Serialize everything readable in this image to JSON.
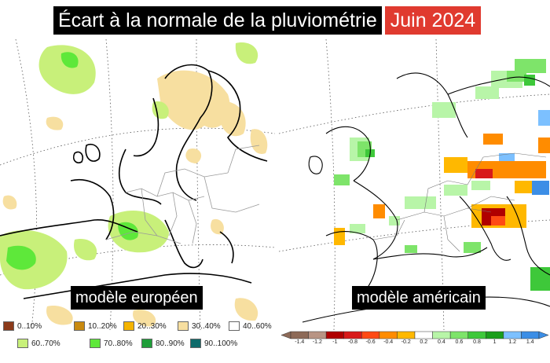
{
  "title": {
    "main": "Écart à la normale de la pluviométrie",
    "date": "Juin 2024"
  },
  "maps": {
    "left": {
      "label": "modèle européen"
    },
    "right": {
      "label": "modèle américain"
    }
  },
  "legend_left": {
    "items": [
      {
        "label": "0..10%",
        "color": "#8b3a1a"
      },
      {
        "label": "10..20%",
        "color": "#c98a10"
      },
      {
        "label": "20..30%",
        "color": "#f4b400"
      },
      {
        "label": "30..40%",
        "color": "#f7dfa0"
      },
      {
        "label": "40..60%",
        "color": "#ffffff"
      },
      {
        "label": "60..70%",
        "color": "#c8f07a"
      },
      {
        "label": "70..80%",
        "color": "#5ee83a"
      },
      {
        "label": "80..90%",
        "color": "#1f9e3a"
      },
      {
        "label": "90..100%",
        "color": "#0e6b6b"
      }
    ]
  },
  "legend_right": {
    "ticks": [
      "-1.4",
      "-1.2",
      "-1",
      "-0.8",
      "-0.6",
      "-0.4",
      "-0.2",
      "0.2",
      "0.4",
      "0.6",
      "0.8",
      "1",
      "1.2",
      "1.4"
    ],
    "colors": [
      "#8d6a58",
      "#b89484",
      "#b00000",
      "#d81a1a",
      "#ff4a14",
      "#ff8c00",
      "#ffb800",
      "#ffffff",
      "#b8f5a8",
      "#7ee46a",
      "#3ec83a",
      "#1a9e1a",
      "#7cc0ff",
      "#3c8ee6"
    ]
  }
}
